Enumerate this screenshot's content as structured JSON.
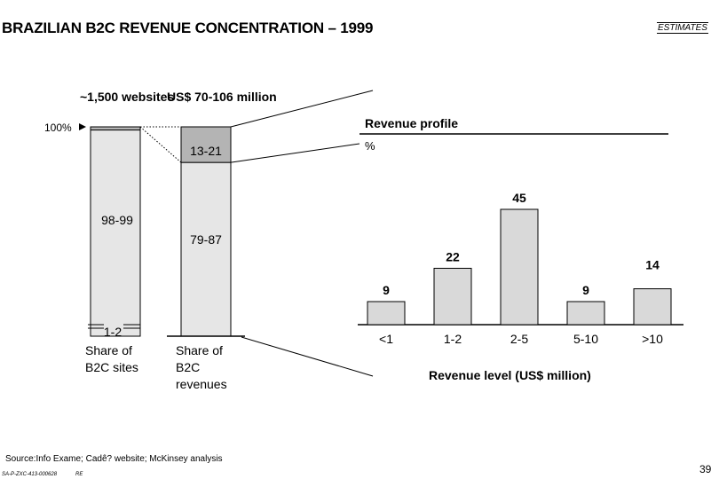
{
  "header": {
    "title": "BRAZILIAN B2C REVENUE CONCENTRATION – 1999",
    "estimates_label": "ESTIMATES"
  },
  "chart_data": [
    {
      "type": "bar",
      "subtype": "stacked-100-percent",
      "axis_label": "100%",
      "categories": [
        "Share of B2C sites",
        "Share of B2C revenues"
      ],
      "column_headers": [
        "~1,500 websites",
        "US$ 70-106 million"
      ],
      "series": [
        {
          "values": [
            98.5,
            83
          ],
          "labels": [
            "98-99",
            "79-87"
          ],
          "color": "#e6e6e6"
        },
        {
          "values": [
            1.5,
            17
          ],
          "labels": [
            "1-2",
            "13-21"
          ],
          "color": "#b4b4b4"
        }
      ]
    },
    {
      "type": "bar",
      "title": "Revenue profile",
      "unit": "%",
      "xlabel": "Revenue level (US$ million)",
      "categories": [
        "<1",
        "1-2",
        "2-5",
        "5-10",
        ">10"
      ],
      "values": [
        9,
        22,
        45,
        9,
        14
      ],
      "ylim": [
        0,
        50
      ],
      "color": "#d9d9d9",
      "grid": false
    }
  ],
  "footer": {
    "source": "Source:Info Exame; Cadê? website; McKinsey analysis",
    "doc_code": "SA-P-ZXC-413-000628",
    "initials": "RE",
    "page_number": "39"
  }
}
